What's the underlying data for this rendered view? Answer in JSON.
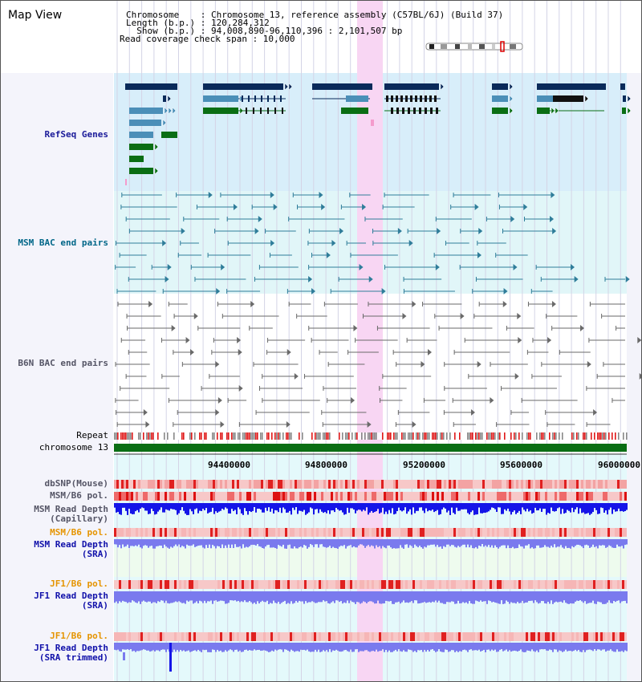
{
  "view": {
    "title": "Map View"
  },
  "info": {
    "chromosome_line": "Chromosome    : Chromosome 13, reference assembly (C57BL/6J) (Build 37)",
    "length_line": "Length (b.p.) : 120,284,312",
    "show_line": "  Show (b.p.) : 94,008,890-96,110,396 : 2,101,507 bp",
    "coverage_line": "Read coverage check span : 10,000"
  },
  "colors": {
    "highlight": "#f8d6f3",
    "refseq_bg": "#d8eefa",
    "msm_bac_bg": "#e1f6f8",
    "gene_navy": "#0a2a5a",
    "gene_blue": "#4b8fb8",
    "gene_green": "#0a6e14",
    "msm_pair": "#2f7d9a",
    "b6n_pair": "#6a6a6a",
    "chromosome_bar": "#0a6e14",
    "snp_red": "#ee4444",
    "depth_blue": "#1515e8",
    "depth_light": "#7a7aee"
  },
  "tracks": {
    "refseq": "RefSeq Genes",
    "msm_bac": "MSM BAC end pairs",
    "b6n_bac": "B6N BAC end pairs",
    "repeat": "Repeat",
    "chromosome": "chromosome 13",
    "dbsnp": "dbSNP(Mouse)",
    "msm_pol_1": "MSM/B6 pol.",
    "msm_depth_cap": "MSM Read Depth\n(Capillary)",
    "msm_pol_2": "MSM/B6 pol.",
    "msm_depth_sra": "MSM Read Depth\n(SRA)",
    "jf1_pol_1": "JF1/B6 pol.",
    "jf1_depth_sra": "JF1 Read Depth\n(SRA)",
    "jf1_pol_2": "JF1/B6 pol.",
    "jf1_depth_trim": "JF1 Read Depth\n(SRA trimmed)"
  },
  "axis": {
    "ticks": [
      "94400000",
      "94800000",
      "95200000",
      "95600000",
      "96000000"
    ]
  }
}
